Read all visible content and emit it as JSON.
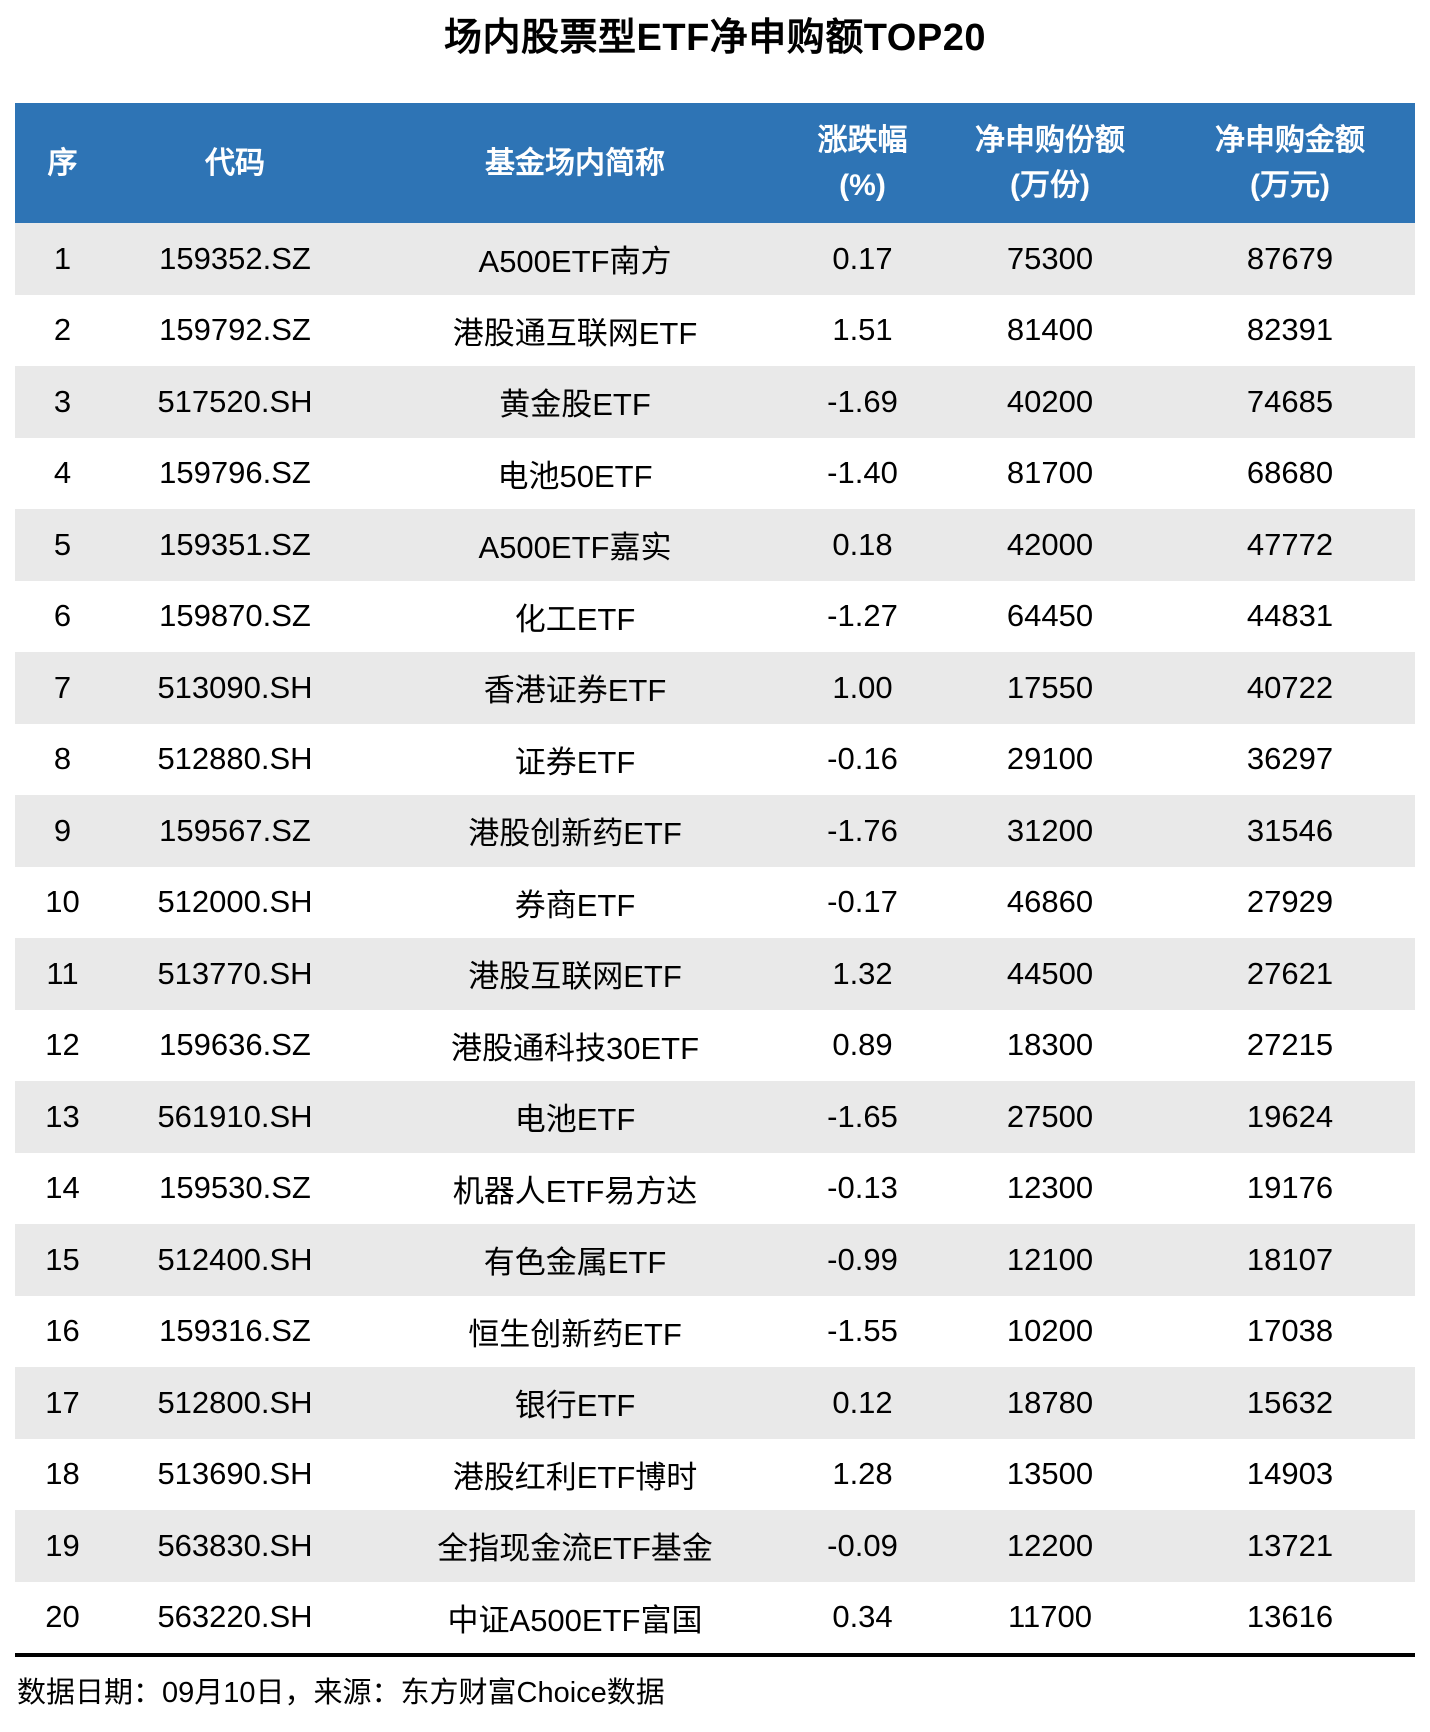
{
  "chart_data": {
    "type": "table",
    "title": "场内股票型ETF净申购额TOP20",
    "columns": [
      {
        "key": "index",
        "label": "序",
        "sub": ""
      },
      {
        "key": "code",
        "label": "代码",
        "sub": ""
      },
      {
        "key": "name",
        "label": "基金场内简称",
        "sub": ""
      },
      {
        "key": "change_pct",
        "label": "涨跌幅",
        "sub": "(%)"
      },
      {
        "key": "net_shares_wan",
        "label": "净申购份额",
        "sub": "(万份)"
      },
      {
        "key": "net_amount_wan",
        "label": "净申购金额",
        "sub": "(万元)"
      }
    ],
    "rows": [
      [
        "1",
        "159352.SZ",
        "A500ETF南方",
        "0.17",
        "75300",
        "87679"
      ],
      [
        "2",
        "159792.SZ",
        "港股通互联网ETF",
        "1.51",
        "81400",
        "82391"
      ],
      [
        "3",
        "517520.SH",
        "黄金股ETF",
        "-1.69",
        "40200",
        "74685"
      ],
      [
        "4",
        "159796.SZ",
        "电池50ETF",
        "-1.40",
        "81700",
        "68680"
      ],
      [
        "5",
        "159351.SZ",
        "A500ETF嘉实",
        "0.18",
        "42000",
        "47772"
      ],
      [
        "6",
        "159870.SZ",
        "化工ETF",
        "-1.27",
        "64450",
        "44831"
      ],
      [
        "7",
        "513090.SH",
        "香港证券ETF",
        "1.00",
        "17550",
        "40722"
      ],
      [
        "8",
        "512880.SH",
        "证券ETF",
        "-0.16",
        "29100",
        "36297"
      ],
      [
        "9",
        "159567.SZ",
        "港股创新药ETF",
        "-1.76",
        "31200",
        "31546"
      ],
      [
        "10",
        "512000.SH",
        "券商ETF",
        "-0.17",
        "46860",
        "27929"
      ],
      [
        "11",
        "513770.SH",
        "港股互联网ETF",
        "1.32",
        "44500",
        "27621"
      ],
      [
        "12",
        "159636.SZ",
        "港股通科技30ETF",
        "0.89",
        "18300",
        "27215"
      ],
      [
        "13",
        "561910.SH",
        "电池ETF",
        "-1.65",
        "27500",
        "19624"
      ],
      [
        "14",
        "159530.SZ",
        "机器人ETF易方达",
        "-0.13",
        "12300",
        "19176"
      ],
      [
        "15",
        "512400.SH",
        "有色金属ETF",
        "-0.99",
        "12100",
        "18107"
      ],
      [
        "16",
        "159316.SZ",
        "恒生创新药ETF",
        "-1.55",
        "10200",
        "17038"
      ],
      [
        "17",
        "512800.SH",
        "银行ETF",
        "0.12",
        "18780",
        "15632"
      ],
      [
        "18",
        "513690.SH",
        "港股红利ETF博时",
        "1.28",
        "13500",
        "14903"
      ],
      [
        "19",
        "563830.SH",
        "全指现金流ETF基金",
        "-0.09",
        "12200",
        "13721"
      ],
      [
        "20",
        "563220.SH",
        "中证A500ETF富国",
        "0.34",
        "11700",
        "13616"
      ]
    ],
    "footer": "数据日期：09月10日，来源：东方财富Choice数据"
  },
  "colors": {
    "header_bg": "#2E74B5",
    "header_text": "#FFFFFF",
    "row_alt_bg": "#E9E9E9",
    "title_text": "#000000"
  }
}
